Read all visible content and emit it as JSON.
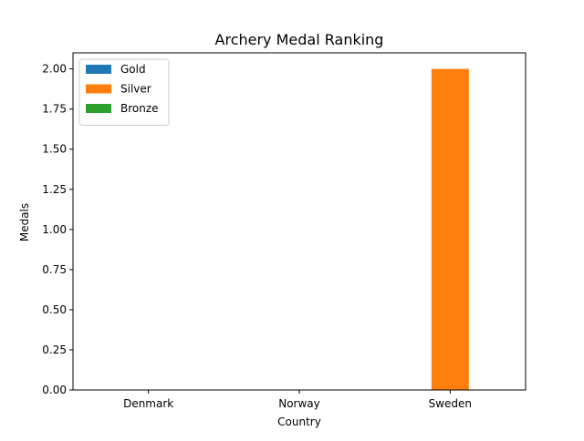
{
  "chart_data": {
    "type": "bar",
    "title": "Archery Medal Ranking",
    "xlabel": "Country",
    "ylabel": "Medals",
    "categories": [
      "Denmark",
      "Norway",
      "Sweden"
    ],
    "series": [
      {
        "name": "Gold",
        "color": "#1f77b4",
        "values": [
          0,
          0,
          0
        ]
      },
      {
        "name": "Silver",
        "color": "#ff7f0e",
        "values": [
          0,
          0,
          2
        ]
      },
      {
        "name": "Bronze",
        "color": "#2ca02c",
        "values": [
          0,
          0,
          0
        ]
      }
    ],
    "ylim": [
      0,
      2.1
    ],
    "yticks": [
      "0.00",
      "0.25",
      "0.50",
      "0.75",
      "1.00",
      "1.25",
      "1.50",
      "1.75",
      "2.00"
    ],
    "legend_position": "top-left",
    "grid": false
  }
}
